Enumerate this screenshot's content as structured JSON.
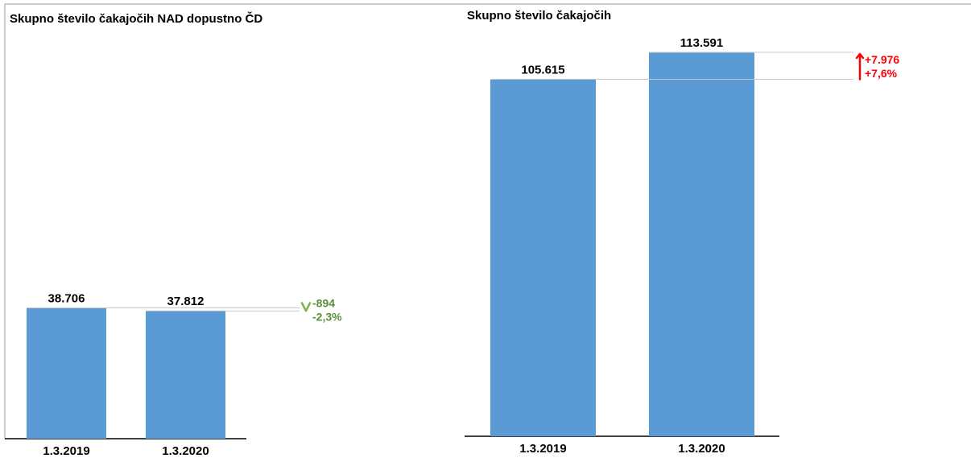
{
  "chart_data": [
    {
      "type": "bar",
      "title": "Skupno število čakajočih NAD dopustno ČD",
      "categories": [
        "1.3.2019",
        "1.3.2020"
      ],
      "values": [
        38706,
        37812
      ],
      "value_labels": [
        "38.706",
        "37.812"
      ],
      "change": {
        "direction": "down",
        "abs_label": "-894",
        "pct_label": "-2,3%",
        "color": "#5a8f3a",
        "arrow_color": "#7ab648"
      },
      "ylim": [
        0,
        113591
      ],
      "bar_color": "#5b9bd5",
      "grid": false
    },
    {
      "type": "bar",
      "title": "Skupno število čakajočih",
      "categories": [
        "1.3.2019",
        "1.3.2020"
      ],
      "values": [
        105615,
        113591
      ],
      "value_labels": [
        "105.615",
        "113.591"
      ],
      "change": {
        "direction": "up",
        "abs_label": "+7.976",
        "pct_label": "+7,6%",
        "color": "#ff0000",
        "arrow_color": "#ff0000"
      },
      "ylim": [
        0,
        113591
      ],
      "bar_color": "#5b9bd5",
      "grid": false
    }
  ]
}
